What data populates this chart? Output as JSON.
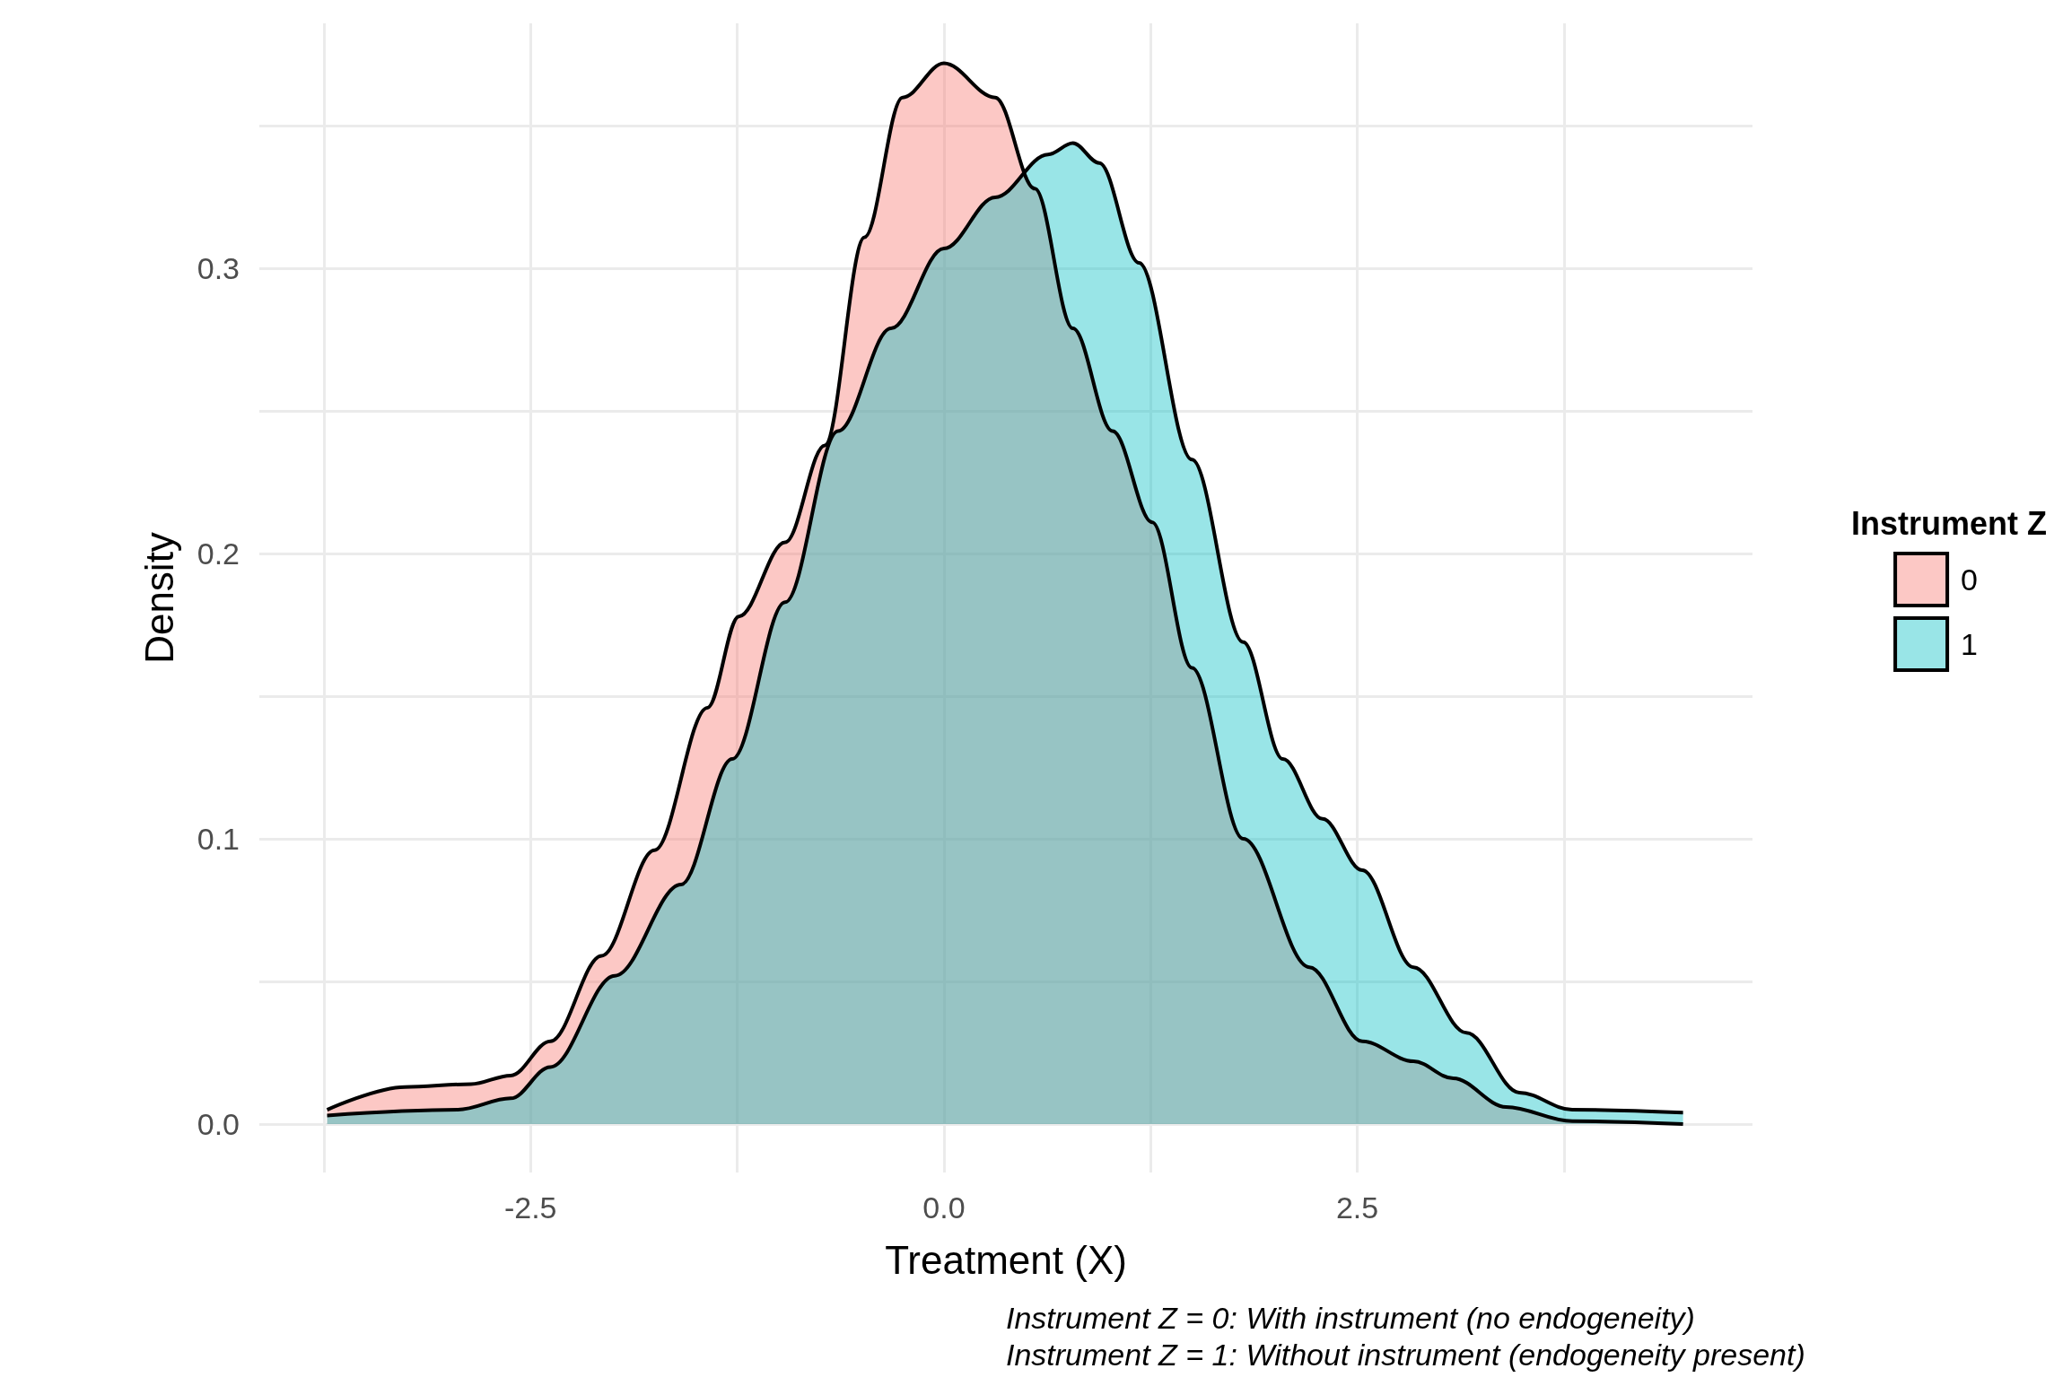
{
  "chart_data": {
    "type": "area",
    "xlabel": "Treatment (X)",
    "ylabel": "Density",
    "legend_title": "Instrument Z",
    "legend": "right",
    "grid": true,
    "annotations": [
      "Instrument Z = 0: With instrument (no endogeneity)",
      "Instrument Z = 1: Without instrument (endogeneity present)"
    ],
    "xlim": [
      -4.14,
      4.89
    ],
    "xticks": [
      {
        "value": -3.75,
        "label": null
      },
      -2.5,
      {
        "value": -1.25,
        "label": null
      },
      {
        "value": 0,
        "label": "0.0"
      },
      {
        "value": 1.25,
        "label": null
      },
      2.5,
      {
        "value": 3.75,
        "label": null
      }
    ],
    "ylim": [
      -0.017,
      0.386
    ],
    "yticks": [
      {
        "value": 0,
        "label": "0.0"
      },
      {
        "value": 0.05,
        "label": null
      },
      0.1,
      {
        "value": 0.15,
        "label": null
      },
      0.2,
      {
        "value": 0.25,
        "label": null
      },
      0.3,
      {
        "value": 0.35,
        "label": null
      }
    ],
    "series": [
      {
        "name": "0",
        "color": "#f8766d",
        "x": [
          -3.73,
          -3.26,
          -2.86,
          -2.62,
          -2.38,
          -2.07,
          -1.75,
          -1.43,
          -1.24,
          -0.96,
          -0.72,
          -0.48,
          -0.25,
          0,
          0.31,
          0.55,
          0.78,
          1.02,
          1.26,
          1.5,
          1.81,
          2.21,
          2.53,
          2.84,
          3.08,
          3.4,
          3.8,
          4.47
        ],
        "values": [
          0.005,
          0.013,
          0.014,
          0.017,
          0.029,
          0.059,
          0.096,
          0.146,
          0.178,
          0.204,
          0.238,
          0.311,
          0.36,
          0.372,
          0.36,
          0.328,
          0.279,
          0.243,
          0.211,
          0.16,
          0.1,
          0.055,
          0.029,
          0.022,
          0.016,
          0.006,
          0.001,
          0
        ]
      },
      {
        "name": "1",
        "color": "#00bfc4",
        "x": [
          -3.73,
          -2.94,
          -2.62,
          -2.38,
          -1.99,
          -1.59,
          -1.28,
          -0.96,
          -0.64,
          -0.32,
          0,
          0.31,
          0.63,
          0.78,
          0.94,
          1.18,
          1.5,
          1.81,
          2.05,
          2.29,
          2.53,
          2.84,
          3.16,
          3.48,
          3.8,
          4.47
        ],
        "values": [
          0.003,
          0.005,
          0.009,
          0.02,
          0.052,
          0.084,
          0.128,
          0.183,
          0.243,
          0.279,
          0.307,
          0.325,
          0.34,
          0.344,
          0.337,
          0.302,
          0.233,
          0.169,
          0.128,
          0.107,
          0.089,
          0.055,
          0.032,
          0.011,
          0.005,
          0.004
        ]
      }
    ]
  }
}
